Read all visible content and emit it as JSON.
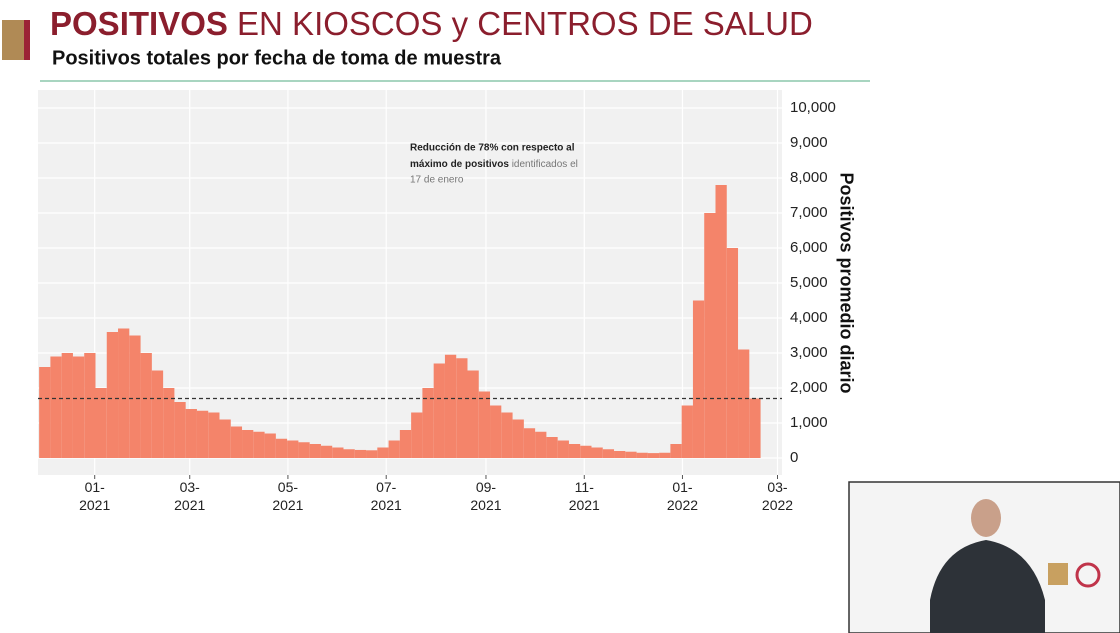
{
  "chart_data": {
    "type": "bar",
    "title_bold": "POSITIVOS",
    "title_rest": "EN KIOSCOS y CENTROS DE SALUD",
    "subtitle": "Positivos totales por fecha de toma de muestra",
    "y_label": "Positivos promedio diario",
    "annotation": [
      "Reducción de 78% con respecto al",
      "máximo de positivos",
      "identificados el",
      "17 de enero"
    ],
    "color": "#f4846a",
    "categories": [
      null,
      null,
      null,
      null,
      null,
      null,
      null,
      null,
      null,
      null,
      null,
      null,
      null,
      null,
      null,
      null,
      null,
      null,
      null,
      null,
      null,
      null,
      null,
      null,
      null,
      null,
      null,
      null,
      null,
      null,
      null,
      null,
      null,
      null,
      null,
      null,
      null,
      null,
      null,
      null,
      null,
      null,
      null,
      null,
      null,
      null,
      null,
      null,
      null,
      null,
      null,
      null,
      null,
      null,
      null,
      null,
      null,
      null,
      null,
      null,
      null,
      null,
      null,
      null
    ],
    "values": [
      2600,
      2900,
      3000,
      2900,
      3000,
      2000,
      3600,
      3700,
      3500,
      3000,
      2500,
      2000,
      1600,
      1400,
      1350,
      1300,
      1100,
      900,
      800,
      750,
      700,
      550,
      500,
      450,
      400,
      350,
      300,
      250,
      230,
      220,
      300,
      500,
      800,
      1300,
      2000,
      2700,
      2950,
      2850,
      2500,
      1900,
      1500,
      1300,
      1100,
      850,
      750,
      600,
      500,
      400,
      350,
      300,
      250,
      200,
      180,
      150,
      140,
      150,
      400,
      1500,
      4500,
      7000,
      7800,
      6000,
      3100,
      1700
    ],
    "reference_line": 1700,
    "xlim": [
      -0.6,
      65.4
    ],
    "xticks": [
      {
        "value": 4.43,
        "label": "01-\n2021"
      },
      {
        "value": 12.86,
        "label": "03-\n2021"
      },
      {
        "value": 21.57,
        "label": "05-\n2021"
      },
      {
        "value": 30.29,
        "label": "07-\n2021"
      },
      {
        "value": 39.14,
        "label": "09-\n2021"
      },
      {
        "value": 47.86,
        "label": "11-\n2021"
      },
      {
        "value": 56.57,
        "label": "01-\n2022"
      },
      {
        "value": 65,
        "label": "03-\n2022"
      }
    ],
    "ylim": [
      0,
      10000
    ],
    "yticks": [
      0,
      {
        "value": 1000,
        "label": "1,000"
      },
      {
        "value": 2000,
        "label": "2,000"
      },
      {
        "value": 3000,
        "label": "3,000"
      },
      {
        "value": 4000,
        "label": "4,000"
      },
      {
        "value": 5000,
        "label": "5,000"
      },
      {
        "value": 6000,
        "label": "6,000"
      },
      {
        "value": 7000,
        "label": "7,000"
      },
      {
        "value": 8000,
        "label": "8,000"
      },
      {
        "value": 9000,
        "label": "9,000"
      },
      {
        "value": 10000,
        "label": "10,000"
      }
    ],
    "grid": true
  }
}
